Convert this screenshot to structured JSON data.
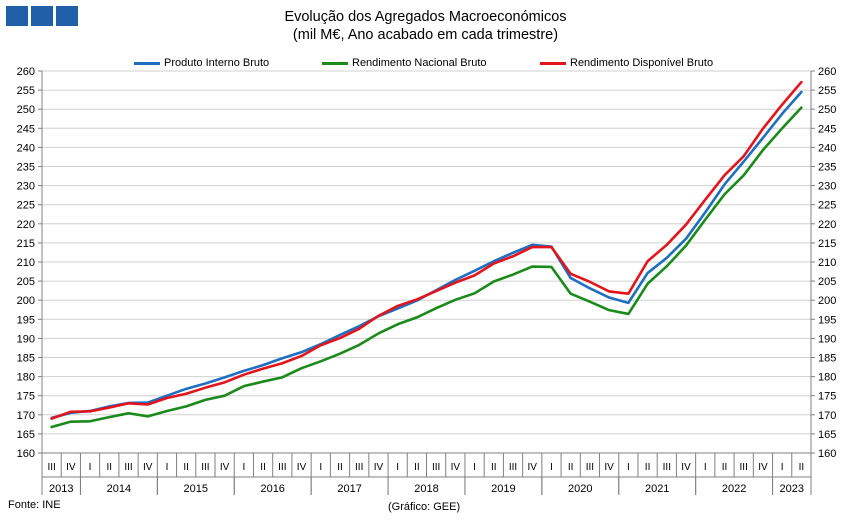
{
  "chart_data": {
    "type": "line",
    "title": "Evolução dos Agregados Macroeconómicos",
    "subtitle": "(mil M€, Ano acabado em cada trimestre)",
    "ylim": [
      160,
      260
    ],
    "ytick_step": 5,
    "grid": true,
    "legend_position": "top",
    "quarters": [
      "III",
      "IV",
      "I",
      "II",
      "III",
      "IV",
      "I",
      "II",
      "III",
      "IV",
      "I",
      "II",
      "III",
      "IV",
      "I",
      "II",
      "III",
      "IV",
      "I",
      "II",
      "III",
      "IV",
      "I",
      "II",
      "III",
      "IV",
      "I",
      "II",
      "III",
      "IV",
      "I",
      "II",
      "III",
      "IV",
      "I",
      "II",
      "III",
      "IV",
      "I",
      "II"
    ],
    "years": [
      {
        "label": "2013",
        "start": 0,
        "count": 2
      },
      {
        "label": "2014",
        "start": 2,
        "count": 4
      },
      {
        "label": "2015",
        "start": 6,
        "count": 4
      },
      {
        "label": "2016",
        "start": 10,
        "count": 4
      },
      {
        "label": "2017",
        "start": 14,
        "count": 4
      },
      {
        "label": "2018",
        "start": 18,
        "count": 4
      },
      {
        "label": "2019",
        "start": 22,
        "count": 4
      },
      {
        "label": "2020",
        "start": 26,
        "count": 4
      },
      {
        "label": "2021",
        "start": 30,
        "count": 4
      },
      {
        "label": "2022",
        "start": 34,
        "count": 4
      },
      {
        "label": "2023",
        "start": 38,
        "count": 2
      }
    ],
    "series": [
      {
        "name": "Produto Interno Bruto",
        "color": "#1f6fc1",
        "values": [
          169.2,
          170.5,
          171.0,
          172.2,
          173.1,
          173.2,
          175.0,
          176.8,
          178.2,
          179.8,
          181.5,
          183.0,
          184.8,
          186.4,
          188.5,
          190.9,
          193.2,
          195.8,
          197.8,
          199.9,
          202.6,
          205.3,
          207.7,
          210.2,
          212.4,
          214.5,
          214.0,
          205.8,
          203.1,
          200.7,
          199.3,
          207.1,
          211.1,
          216.1,
          223.0,
          230.3,
          236.3,
          242.5,
          248.8,
          254.5
        ]
      },
      {
        "name": "Rendimento Nacional Bruto",
        "color": "#1a8a1a",
        "values": [
          166.8,
          168.2,
          168.3,
          169.4,
          170.4,
          169.6,
          171.0,
          172.2,
          173.9,
          175.0,
          177.5,
          178.7,
          179.8,
          182.2,
          184.0,
          186.0,
          188.3,
          191.3,
          193.7,
          195.5,
          197.9,
          200.1,
          201.8,
          204.9,
          206.7,
          208.8,
          208.7,
          201.7,
          199.6,
          197.4,
          196.4,
          204.3,
          208.9,
          214.3,
          221.1,
          227.7,
          232.7,
          239.3,
          245.0,
          250.4
        ]
      },
      {
        "name": "Rendimento Disponível Bruto",
        "color": "#e2141c",
        "values": [
          169.0,
          170.8,
          170.9,
          171.9,
          173.0,
          172.7,
          174.4,
          175.5,
          177.1,
          178.5,
          180.5,
          182.1,
          183.5,
          185.4,
          188.2,
          190.1,
          192.5,
          195.9,
          198.5,
          200.2,
          202.4,
          204.6,
          206.5,
          209.6,
          211.5,
          213.9,
          213.9,
          206.9,
          204.8,
          202.3,
          201.7,
          210.2,
          214.5,
          219.8,
          226.3,
          232.7,
          237.7,
          244.9,
          251.2,
          257.1
        ]
      }
    ]
  },
  "footer": {
    "source": "Fonte: INE",
    "credit": "(Gráfico: GEE)"
  },
  "logo": {
    "color": "#1f5fa8"
  }
}
